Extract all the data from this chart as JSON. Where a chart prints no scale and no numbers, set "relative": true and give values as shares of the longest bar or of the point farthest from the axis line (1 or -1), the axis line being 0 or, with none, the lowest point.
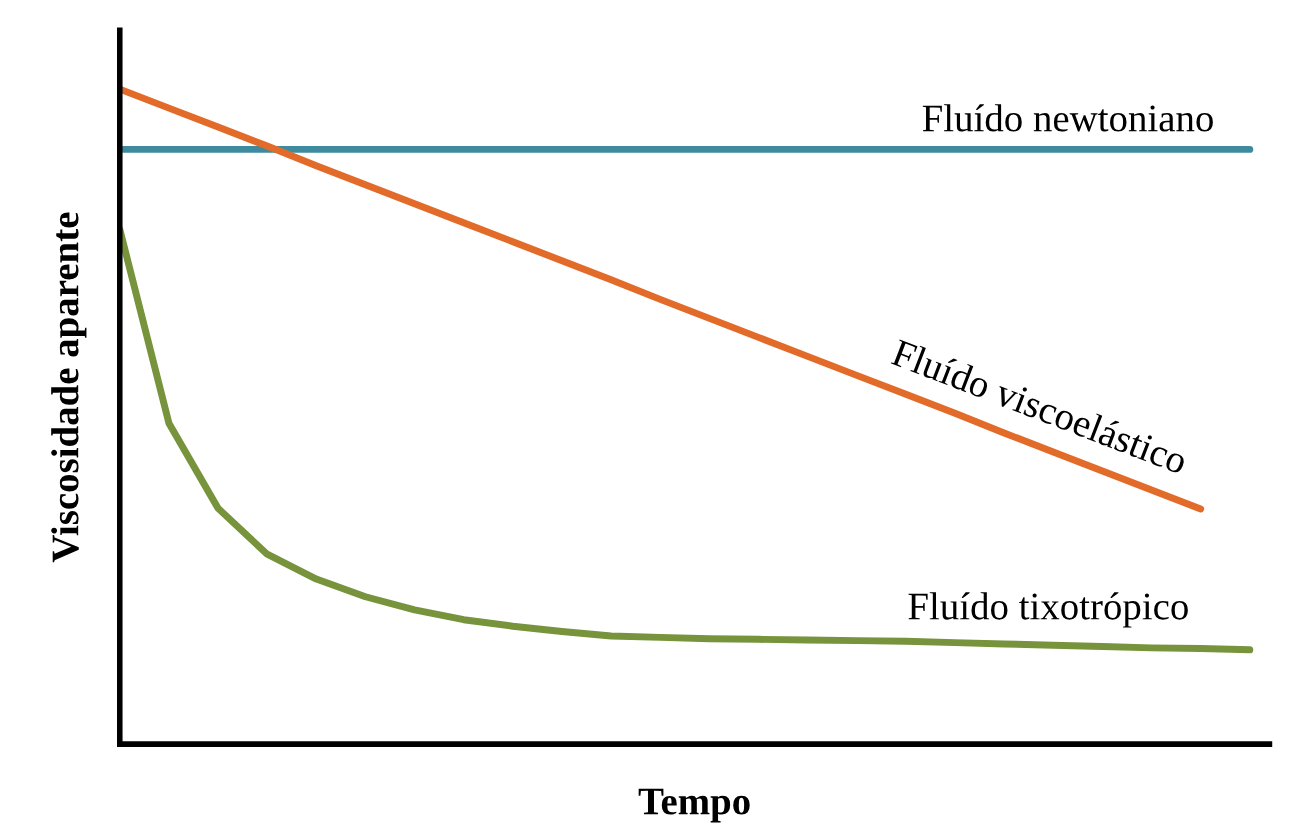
{
  "chart_data": {
    "type": "line",
    "relative": true,
    "xlabel": "Tempo",
    "ylabel": "Viscosidade aparente",
    "legend": false,
    "grid": false,
    "marker": "none",
    "line_style": "solid",
    "categories": [
      null,
      null,
      null,
      null,
      null,
      null,
      null,
      null,
      null,
      null,
      null,
      null,
      null,
      null,
      null,
      null,
      null,
      null,
      null,
      null,
      null,
      null,
      null,
      null
    ],
    "series": [
      {
        "name": "Fluído newtoniano",
        "color": "#3e8a9e",
        "values": [
          0.908,
          0.908,
          0.908,
          0.908,
          0.908,
          0.908,
          0.908,
          0.908,
          0.908,
          0.908,
          0.908,
          0.908,
          0.908,
          0.908,
          0.908,
          0.908,
          0.908,
          0.908,
          0.908,
          0.908,
          0.908,
          0.908,
          0.908,
          0.908
        ]
      },
      {
        "name": "Fluído viscoelástico",
        "color": "#e26b2a",
        "values": [
          1.0,
          0.971,
          0.942,
          0.913,
          0.883,
          0.854,
          0.825,
          0.796,
          0.767,
          0.738,
          0.709,
          0.679,
          0.65,
          0.621,
          0.592,
          0.563,
          0.534,
          0.505,
          0.475,
          0.446,
          0.417,
          0.388,
          0.359,
          null
        ]
      },
      {
        "name": "Fluído tixotrópico",
        "color": "#77933c",
        "values": [
          0.786,
          0.49,
          0.36,
          0.29,
          0.252,
          0.225,
          0.205,
          0.19,
          0.18,
          0.172,
          0.165,
          0.163,
          0.161,
          0.16,
          0.159,
          0.158,
          0.157,
          0.155,
          0.153,
          0.151,
          0.149,
          0.147,
          0.146,
          0.144
        ]
      }
    ]
  }
}
